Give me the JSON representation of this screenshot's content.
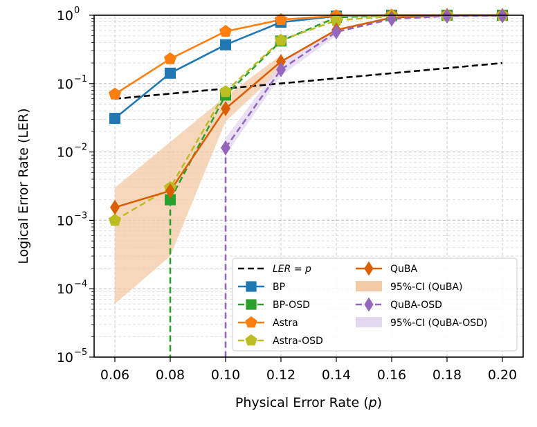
{
  "chart_data": {
    "type": "line",
    "title": "",
    "xlabel": "Physical Error Rate",
    "xlabel_symbol": "p",
    "ylabel": "Logical Error Rate (LER)",
    "yscale": "log",
    "xlim": [
      0.0525,
      0.2075
    ],
    "ylim": [
      1e-05,
      1.0
    ],
    "grid": true,
    "legend_position": "lower-right",
    "x_ticks": [
      "0.06",
      "0.08",
      "0.10",
      "0.12",
      "0.14",
      "0.16",
      "0.18",
      "0.20"
    ],
    "y_ticks": [
      {
        "base": "10",
        "exp": "0",
        "value": 1
      },
      {
        "base": "10",
        "exp": "−1",
        "value": 0.1
      },
      {
        "base": "10",
        "exp": "−2",
        "value": 0.01
      },
      {
        "base": "10",
        "exp": "−3",
        "value": 0.001
      },
      {
        "base": "10",
        "exp": "−4",
        "value": 0.0001
      },
      {
        "base": "10",
        "exp": "−5",
        "value": 1e-05
      }
    ],
    "reference": {
      "name": "LER = p",
      "legend_italic": "LER = p",
      "color": "#000000",
      "x": [
        0.06,
        0.2
      ],
      "y": [
        0.06,
        0.2
      ]
    },
    "series": [
      {
        "name": "BP",
        "color": "#1f77b4",
        "marker": "square",
        "dashed": false,
        "x": [
          0.06,
          0.08,
          0.1,
          0.12,
          0.14,
          0.16,
          0.18,
          0.2
        ],
        "y": [
          0.031,
          0.142,
          0.37,
          0.79,
          0.97,
          1.0,
          1.0,
          1.0
        ]
      },
      {
        "name": "BP-OSD",
        "color": "#2ca02c",
        "marker": "square",
        "dashed": true,
        "x": [
          0.08,
          0.1,
          0.12,
          0.14,
          0.16,
          0.18,
          0.2
        ],
        "y": [
          0.002,
          0.068,
          0.42,
          0.93,
          0.99,
          1.0,
          1.0
        ]
      },
      {
        "name": "Astra",
        "color": "#ff7f0e",
        "marker": "pentagon",
        "dashed": false,
        "x": [
          0.06,
          0.08,
          0.1,
          0.12,
          0.14,
          0.16,
          0.18,
          0.2
        ],
        "y": [
          0.07,
          0.23,
          0.58,
          0.86,
          0.98,
          1.0,
          1.0,
          1.0
        ]
      },
      {
        "name": "Astra-OSD",
        "color": "#bcbd22",
        "marker": "pentagon",
        "dashed": true,
        "x": [
          0.06,
          0.08,
          0.1,
          0.12,
          0.14,
          0.16,
          0.18,
          0.2
        ],
        "y": [
          0.001,
          0.003,
          0.076,
          0.43,
          0.84,
          0.97,
          0.99,
          0.99
        ]
      },
      {
        "name": "QuBA",
        "color": "#d95f02",
        "marker": "diamond",
        "dashed": false,
        "x": [
          0.06,
          0.08,
          0.1,
          0.12,
          0.14,
          0.16,
          0.18,
          0.2
        ],
        "y": [
          0.00155,
          0.0027,
          0.043,
          0.21,
          0.61,
          0.92,
          0.99,
          0.99
        ]
      },
      {
        "name": "QuBA-OSD",
        "color": "#9467bd",
        "marker": "diamond",
        "dashed": true,
        "x": [
          0.1,
          0.12,
          0.14,
          0.16,
          0.18,
          0.2
        ],
        "y": [
          0.0115,
          0.16,
          0.57,
          0.88,
          0.97,
          0.98
        ]
      }
    ],
    "bands": [
      {
        "name": "95%-CI (QuBA)",
        "color": "#f4c9a6",
        "x": [
          0.06,
          0.08,
          0.1,
          0.12
        ],
        "lower": [
          6e-05,
          0.0003,
          0.028,
          0.16
        ],
        "upper": [
          0.003,
          0.014,
          0.065,
          0.26
        ]
      },
      {
        "name": "95%-CI (QuBA-OSD)",
        "color": "#e3d6ef",
        "x": [
          0.1,
          0.12,
          0.14
        ],
        "lower": [
          0.009,
          0.13,
          0.5
        ],
        "upper": [
          0.016,
          0.2,
          0.64
        ]
      }
    ],
    "drop_lines": [
      {
        "series": "BP-OSD",
        "x": 0.08,
        "from": 0.002,
        "to": 1e-05
      },
      {
        "series": "QuBA-OSD",
        "x": 0.1,
        "from": 0.0115,
        "to": 1e-05
      }
    ],
    "legend": [
      {
        "label": "LER = p",
        "ref": "reference"
      },
      {
        "label": "BP",
        "ref": "BP"
      },
      {
        "label": "BP-OSD",
        "ref": "BP-OSD"
      },
      {
        "label": "Astra",
        "ref": "Astra"
      },
      {
        "label": "Astra-OSD",
        "ref": "Astra-OSD"
      },
      {
        "label": "QuBA",
        "ref": "QuBA"
      },
      {
        "label": "95%-CI (QuBA)",
        "ref": "95%-CI (QuBA)"
      },
      {
        "label": "QuBA-OSD",
        "ref": "QuBA-OSD"
      },
      {
        "label": "95%-CI (QuBA-OSD)",
        "ref": "95%-CI (QuBA-OSD)"
      }
    ]
  }
}
